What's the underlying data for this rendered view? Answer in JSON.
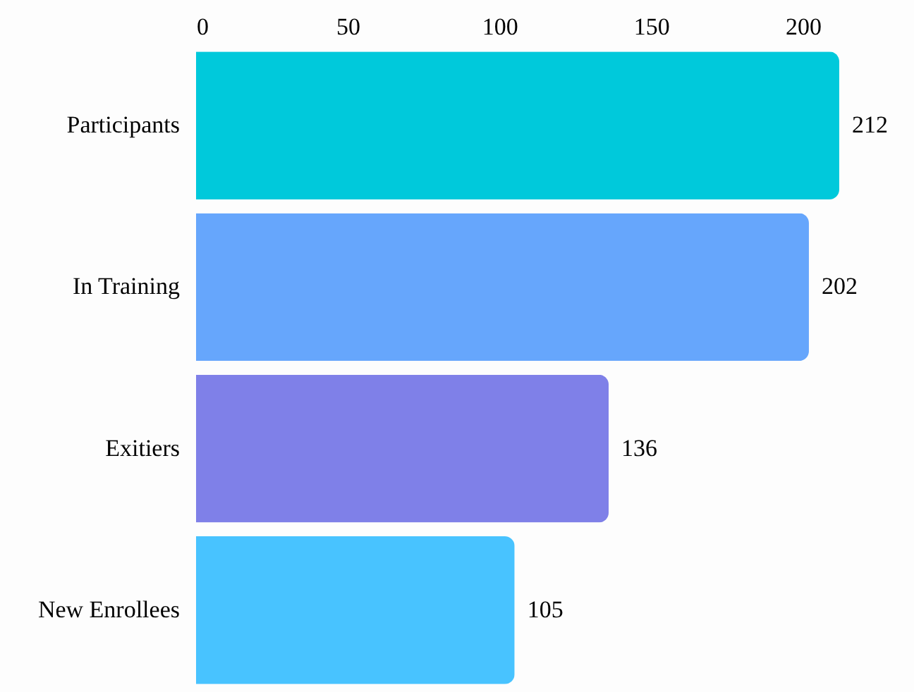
{
  "chart_data": {
    "type": "bar",
    "orientation": "horizontal",
    "categories": [
      "Participants",
      "In Training",
      "Exitiers",
      "New Enrollees"
    ],
    "values": [
      212,
      202,
      136,
      105
    ],
    "colors": [
      "#00c9db",
      "#66a6fc",
      "#7f80e8",
      "#48c3ff"
    ],
    "xlim": [
      0,
      212
    ],
    "xticks": [
      0,
      50,
      100,
      150,
      200
    ],
    "data_labels": true,
    "grid": false
  }
}
